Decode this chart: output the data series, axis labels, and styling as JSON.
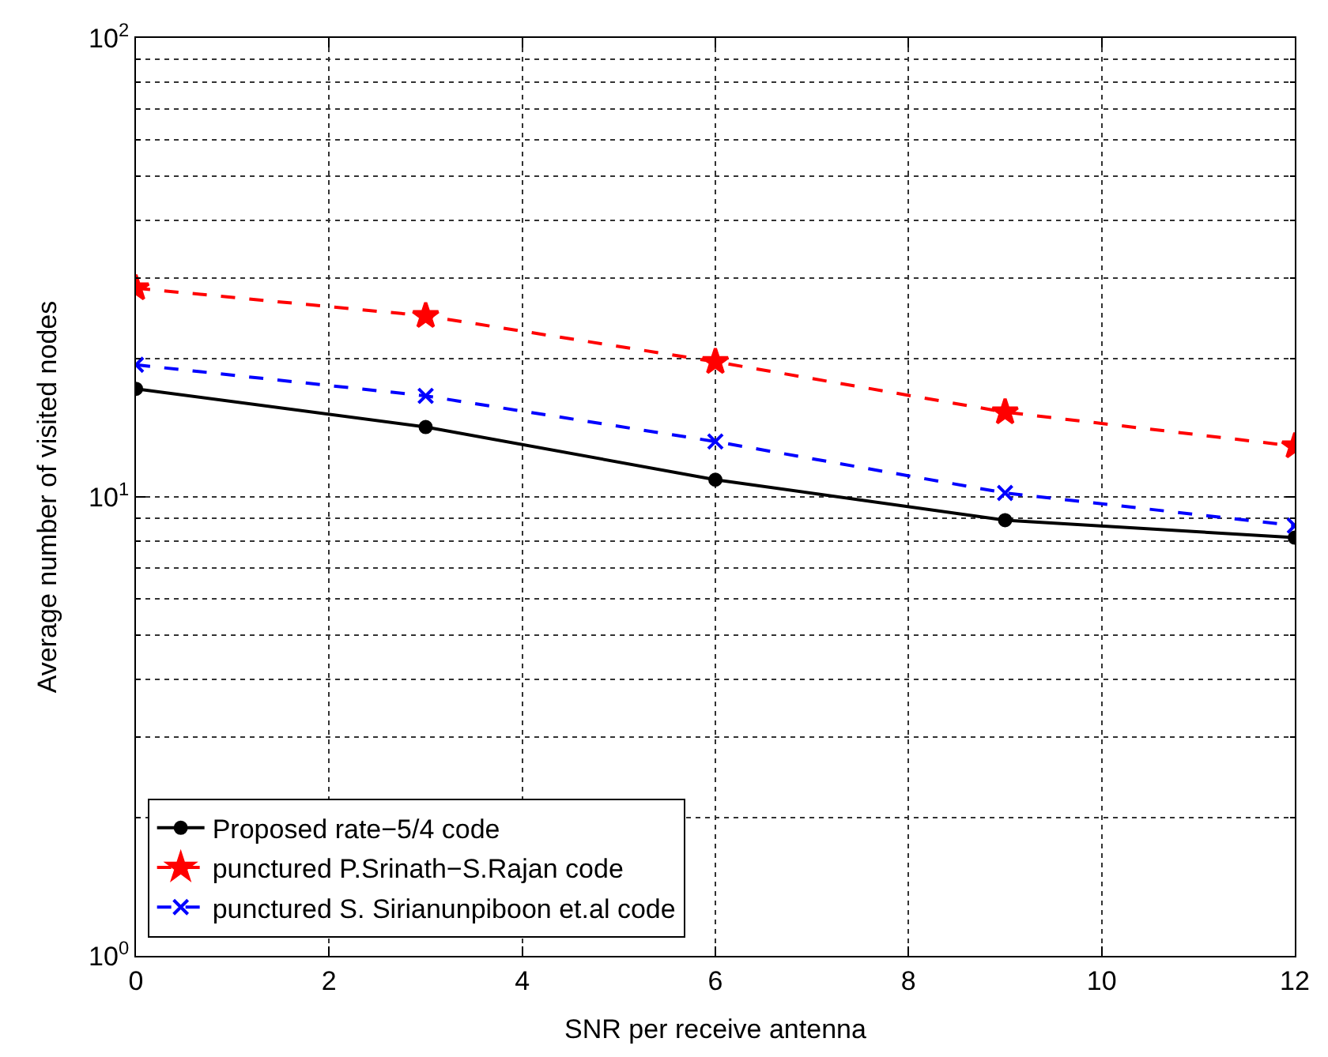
{
  "chart_data": {
    "type": "line",
    "xlabel": "SNR per receive antenna",
    "ylabel": "Average number of visited nodes",
    "x": [
      0,
      3,
      6,
      9,
      12
    ],
    "series": [
      {
        "name": "Proposed rate−5/4 code",
        "color": "#000000",
        "values": [
          17.2,
          14.2,
          10.9,
          8.9,
          8.15
        ],
        "marker": "circle",
        "line_style": "solid"
      },
      {
        "name": "punctured P.Srinath−S.Rajan code",
        "color": "#ff0000",
        "values": [
          28.5,
          24.8,
          19.7,
          15.3,
          12.9
        ],
        "marker": "star",
        "line_style": "dashed"
      },
      {
        "name": "punctured S. Sirianunpiboon et.al code",
        "color": "#0000ff",
        "values": [
          19.4,
          16.6,
          13.2,
          10.2,
          8.66
        ],
        "marker": "cross",
        "line_style": "dashed"
      }
    ],
    "log": "y",
    "xlim": [
      0,
      12
    ],
    "xticks": [
      0,
      2,
      4,
      6,
      8,
      10,
      12
    ],
    "ylim": [
      1,
      100
    ],
    "yticks": [
      {
        "value": 1,
        "label": "10$^{0}$"
      },
      {
        "value": 10,
        "label": "10$^{1}$"
      },
      {
        "value": 100,
        "label": "10$^{2}$"
      }
    ],
    "grid": true,
    "legend": "bottom left"
  }
}
